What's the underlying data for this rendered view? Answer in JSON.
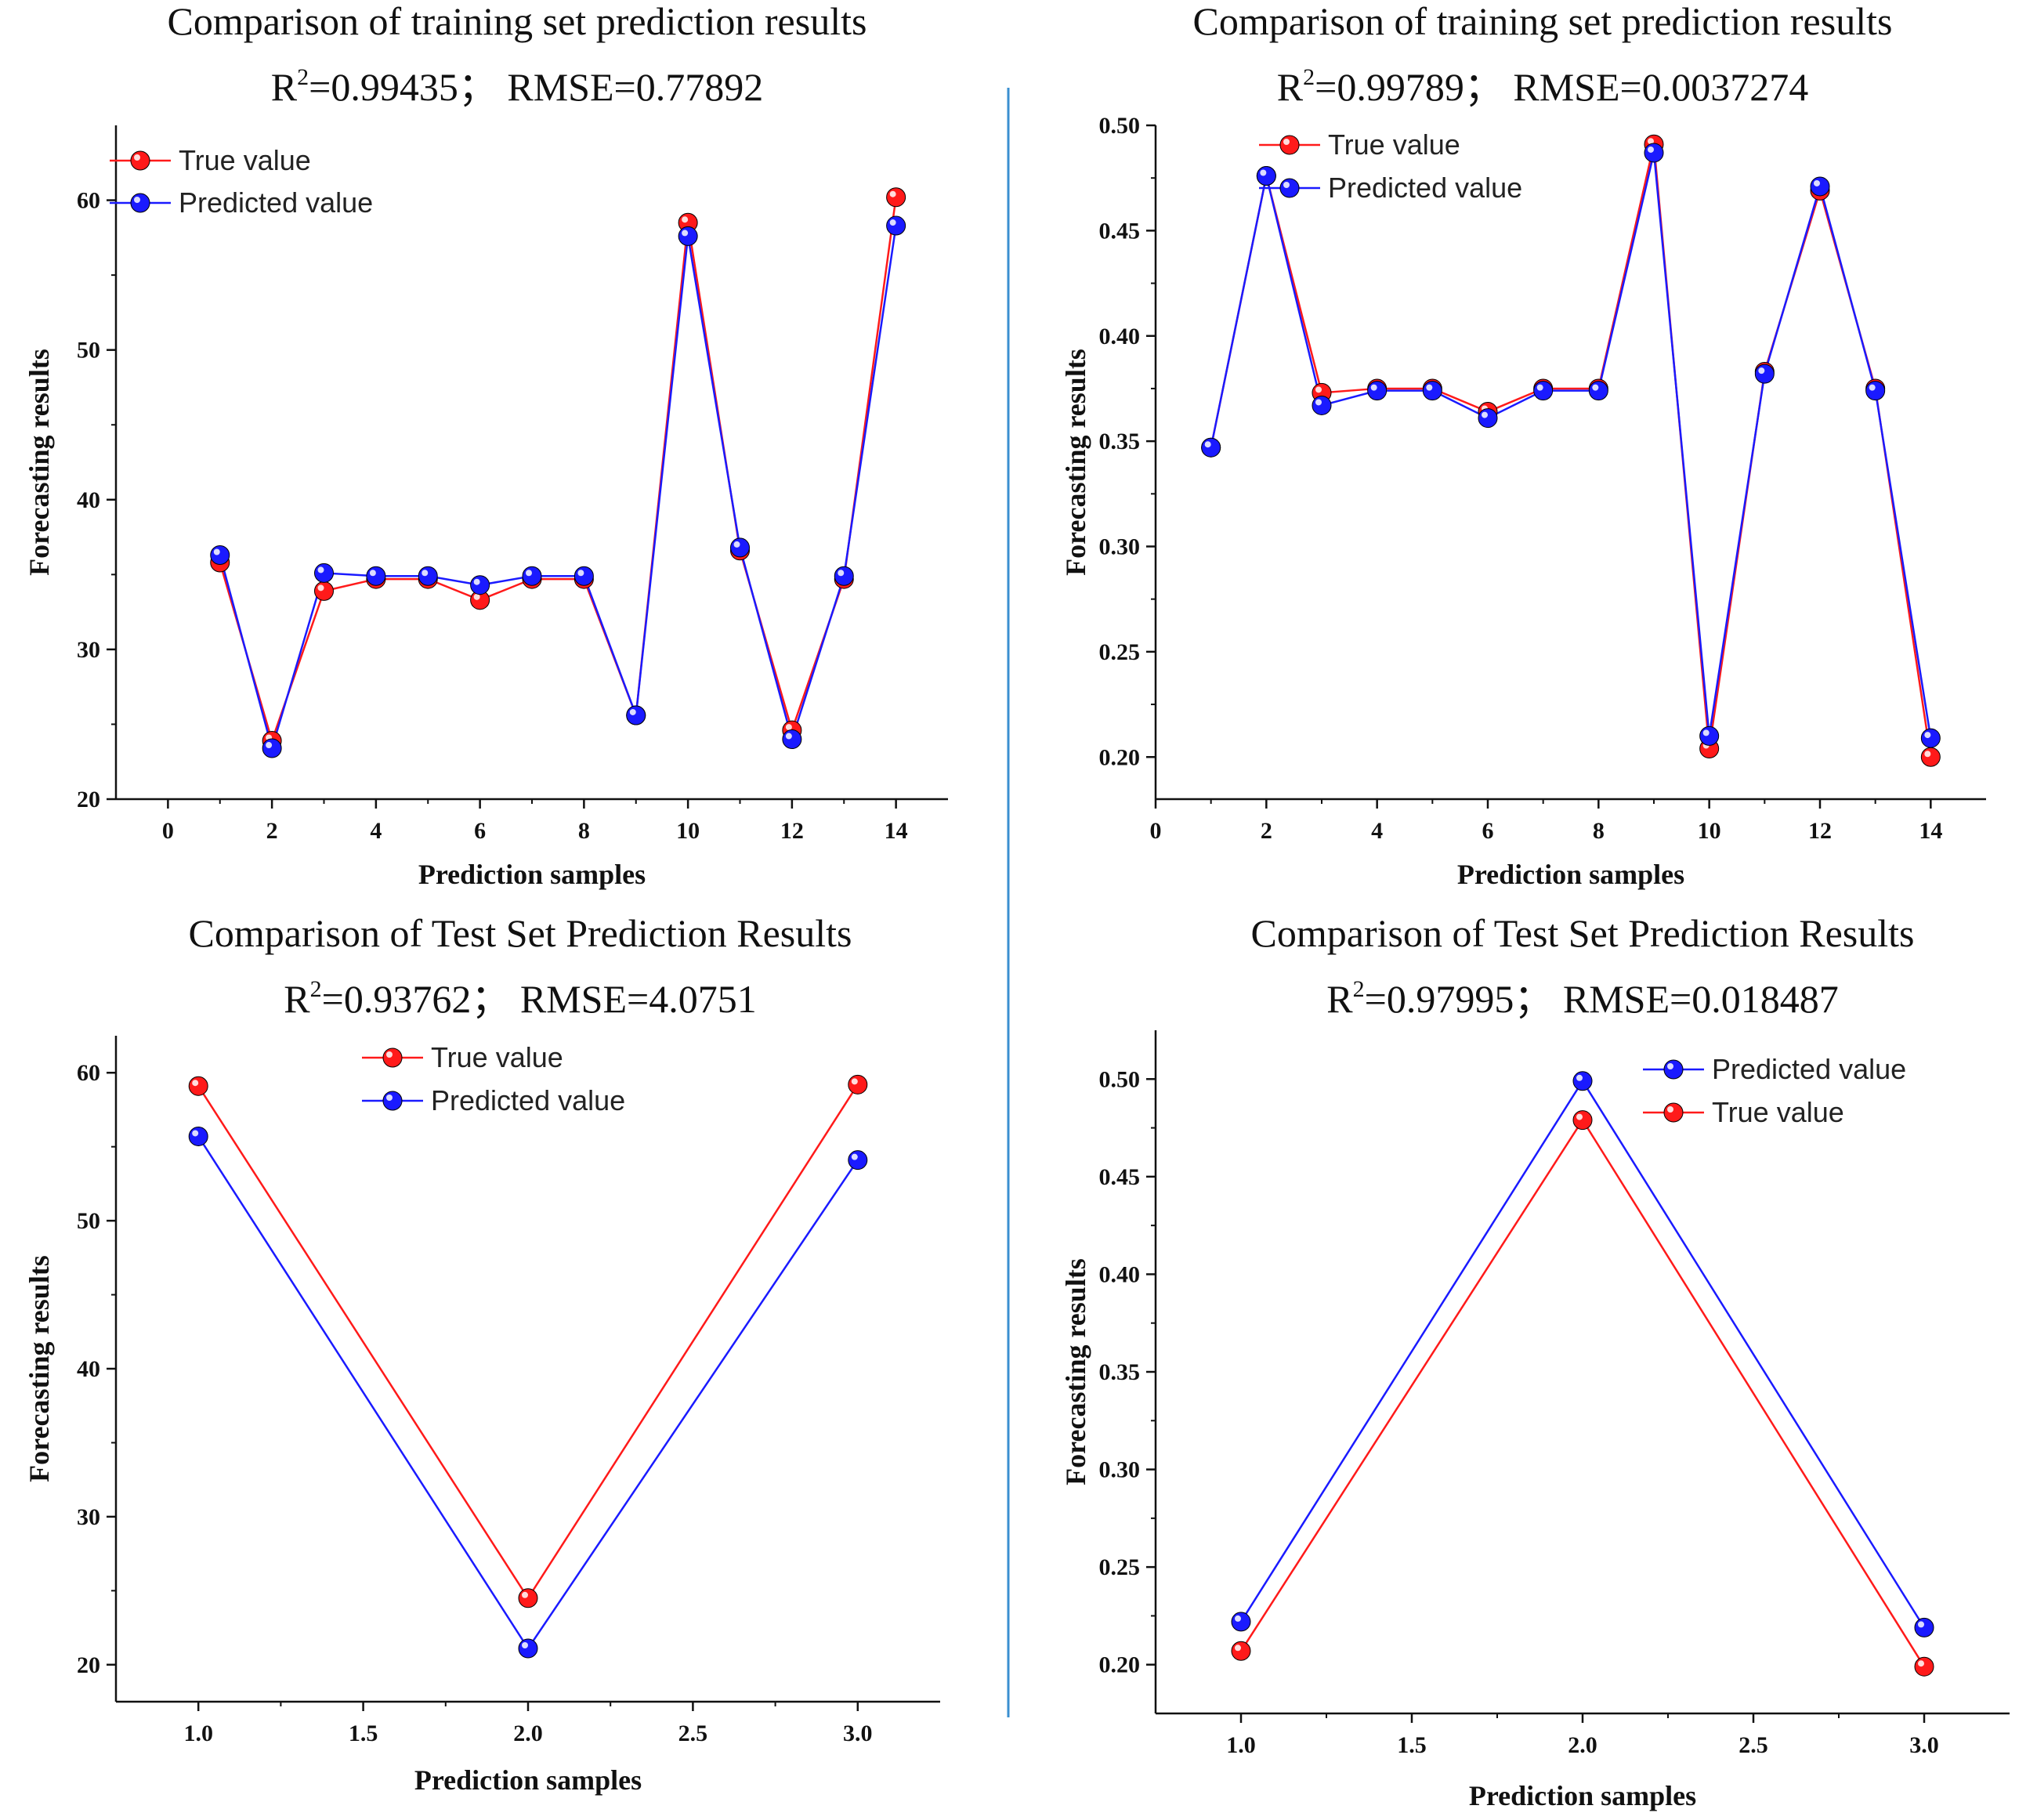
{
  "colors": {
    "true_value": "#ff1a1a",
    "predicted_value": "#1a1aff",
    "divider": "#3a8fd0",
    "axis": "#111111"
  },
  "chart_data": [
    {
      "type": "line",
      "title": "Comparison  of training set prediction  results",
      "subtitle": "R²=0.99435； RMSE=0.77892",
      "xlabel": "Prediction samples",
      "ylabel": "Forecasting results",
      "xlim": [
        -1,
        15
      ],
      "ylim": [
        20,
        65
      ],
      "xticks": [
        0,
        2,
        4,
        6,
        8,
        10,
        12,
        14
      ],
      "yticks": [
        20,
        30,
        40,
        50,
        60
      ],
      "xtick_labels": [
        "0",
        "2",
        "4",
        "6",
        "8",
        "10",
        "12",
        "14"
      ],
      "ytick_labels": [
        "20",
        "30",
        "40",
        "50",
        "60"
      ],
      "legend": [
        "True value",
        "Predicted value"
      ],
      "legend_position": "top-left",
      "x": [
        1,
        2,
        3,
        4,
        5,
        6,
        7,
        8,
        9,
        10,
        11,
        12,
        13,
        14
      ],
      "series": [
        {
          "name": "True value",
          "color_key": "true_value",
          "values": [
            35.8,
            23.9,
            33.9,
            34.7,
            34.7,
            33.3,
            34.7,
            34.7,
            25.6,
            58.5,
            36.6,
            24.6,
            34.7,
            60.2
          ]
        },
        {
          "name": "Predicted value",
          "color_key": "predicted_value",
          "values": [
            36.3,
            23.4,
            35.1,
            34.9,
            34.9,
            34.3,
            34.9,
            34.9,
            25.6,
            57.6,
            36.8,
            24.0,
            34.9,
            58.3
          ]
        }
      ]
    },
    {
      "type": "line",
      "title": "Comparison  of training  set prediction  results",
      "subtitle": "R²=0.99789； RMSE=0.0037274",
      "xlabel": "Prediction samples",
      "ylabel": "Forecasting results",
      "xlim": [
        0,
        15
      ],
      "ylim": [
        0.18,
        0.5
      ],
      "xticks": [
        0,
        2,
        4,
        6,
        8,
        10,
        12,
        14
      ],
      "yticks": [
        0.2,
        0.25,
        0.3,
        0.35,
        0.4,
        0.45,
        0.5
      ],
      "xtick_labels": [
        "0",
        "2",
        "4",
        "6",
        "8",
        "10",
        "12",
        "14"
      ],
      "ytick_labels": [
        "0.20",
        "0.25",
        "0.30",
        "0.35",
        "0.40",
        "0.45",
        "0.50"
      ],
      "legend": [
        "True value",
        "Predicted value"
      ],
      "legend_position": "top-left",
      "x": [
        1,
        2,
        3,
        4,
        5,
        6,
        7,
        8,
        9,
        10,
        11,
        12,
        13,
        14
      ],
      "series": [
        {
          "name": "True value",
          "color_key": "true_value",
          "values": [
            0.347,
            0.476,
            0.373,
            0.375,
            0.375,
            0.364,
            0.375,
            0.375,
            0.491,
            0.204,
            0.383,
            0.469,
            0.375,
            0.2
          ]
        },
        {
          "name": "Predicted value",
          "color_key": "predicted_value",
          "values": [
            0.347,
            0.476,
            0.367,
            0.374,
            0.374,
            0.361,
            0.374,
            0.374,
            0.487,
            0.21,
            0.382,
            0.471,
            0.374,
            0.209
          ]
        }
      ]
    },
    {
      "type": "line",
      "title": "Comparison  of Test Set Prediction Results",
      "subtitle": "R²=0.93762；  RMSE=4.0751",
      "xlabel": "Prediction samples",
      "ylabel": "Forecasting results",
      "xlim": [
        0.75,
        3.25
      ],
      "ylim": [
        17.5,
        62.5
      ],
      "xticks": [
        1.0,
        1.5,
        2.0,
        2.5,
        3.0
      ],
      "yticks": [
        20,
        30,
        40,
        50,
        60
      ],
      "xtick_labels": [
        "1.0",
        "1.5",
        "2.0",
        "2.5",
        "3.0"
      ],
      "ytick_labels": [
        "20",
        "30",
        "40",
        "50",
        "60"
      ],
      "legend": [
        "True value",
        "Predicted value"
      ],
      "legend_position": "top-center",
      "x": [
        1,
        2,
        3
      ],
      "series": [
        {
          "name": "True value",
          "color_key": "true_value",
          "values": [
            59.1,
            24.5,
            59.2
          ]
        },
        {
          "name": "Predicted value",
          "color_key": "predicted_value",
          "values": [
            55.7,
            21.1,
            54.1
          ]
        }
      ]
    },
    {
      "type": "line",
      "title": "Comparison  of Test Set Prediction Results",
      "subtitle": "R²=0.97995； RMSE=0.018487",
      "xlabel": "Prediction samples",
      "ylabel": "Forecasting results",
      "xlim": [
        0.75,
        3.25
      ],
      "ylim": [
        0.175,
        0.525
      ],
      "xticks": [
        1.0,
        1.5,
        2.0,
        2.5,
        3.0
      ],
      "yticks": [
        0.2,
        0.25,
        0.3,
        0.35,
        0.4,
        0.45,
        0.5
      ],
      "xtick_labels": [
        "1.0",
        "1.5",
        "2.0",
        "2.5",
        "3.0"
      ],
      "ytick_labels": [
        "0.20",
        "0.25",
        "0.30",
        "0.35",
        "0.40",
        "0.45",
        "0.50"
      ],
      "legend": [
        "Predicted value",
        "True value"
      ],
      "legend_position": "top-right",
      "x": [
        1,
        2,
        3
      ],
      "series": [
        {
          "name": "Predicted value",
          "color_key": "predicted_value",
          "values": [
            0.222,
            0.499,
            0.219
          ]
        },
        {
          "name": "True value",
          "color_key": "true_value",
          "values": [
            0.207,
            0.479,
            0.199
          ]
        }
      ]
    }
  ]
}
